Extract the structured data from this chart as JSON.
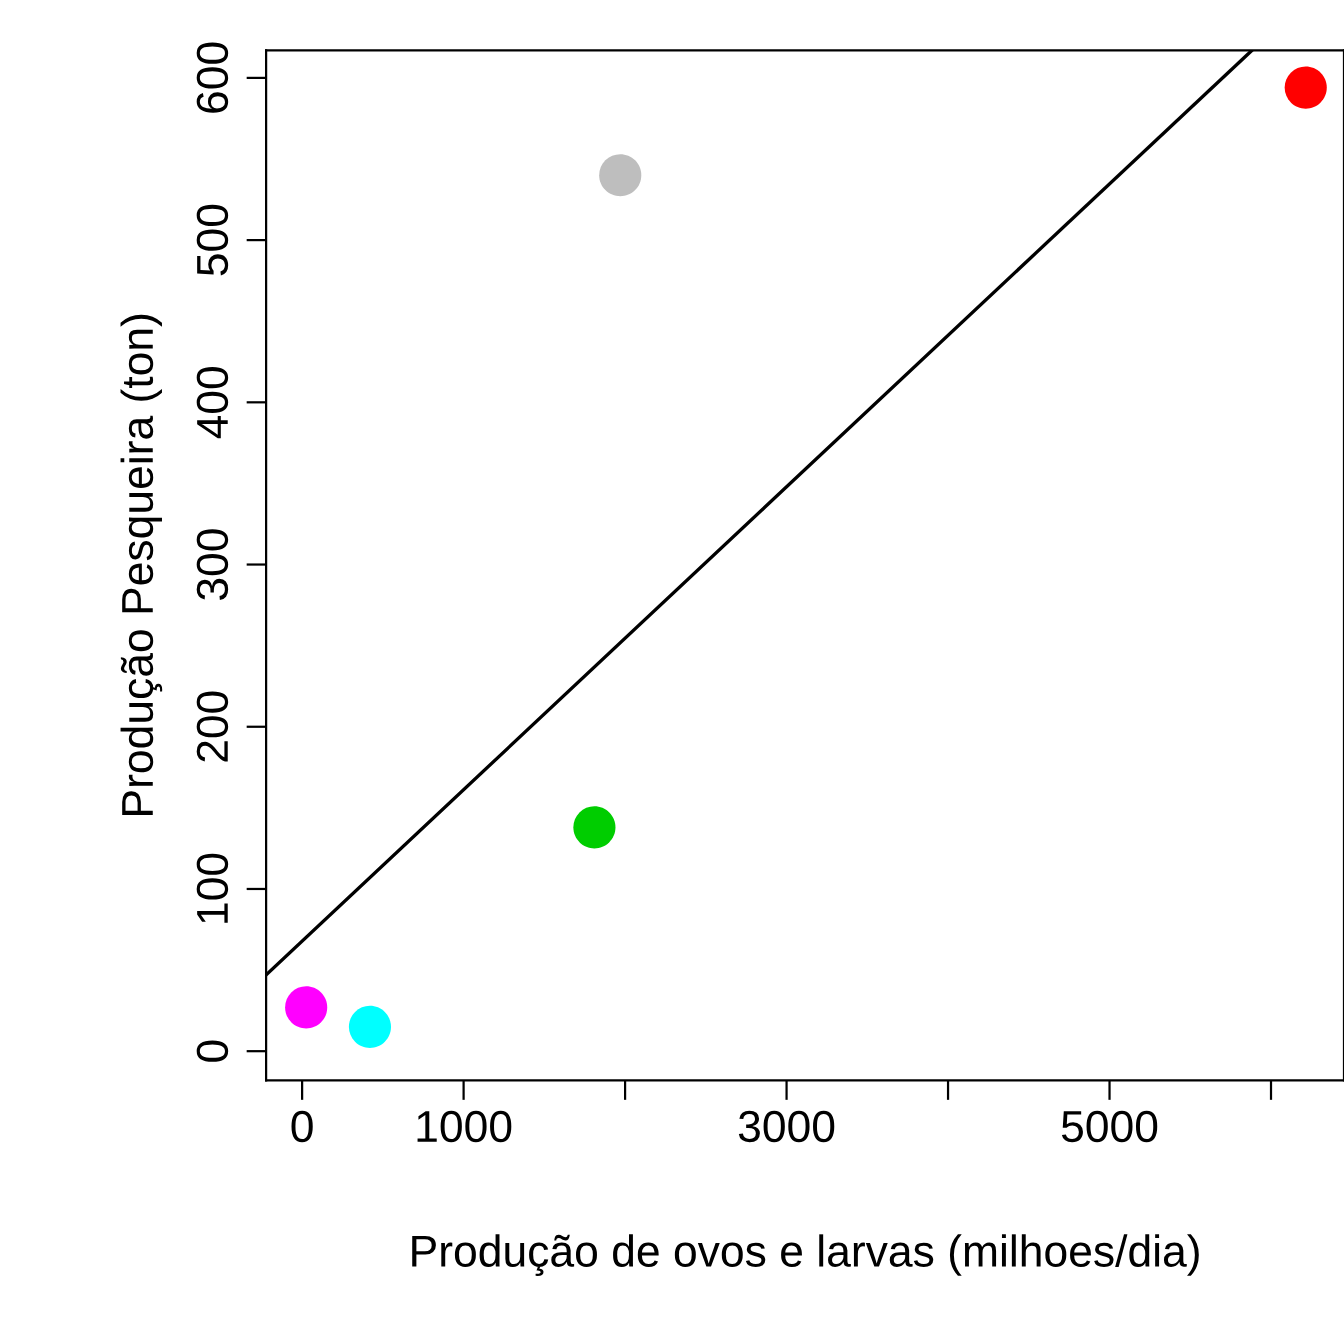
{
  "chart_data": {
    "type": "scatter",
    "xlabel": "Produção de ovos e larvas (milhoes/dia)",
    "ylabel": "Produção Pesqueira (ton)",
    "xlim": [
      -223,
      6452
    ],
    "ylim": [
      -18,
      617
    ],
    "xticks": [
      0,
      1000,
      {
        "value": 2000,
        "label": null
      },
      3000,
      {
        "value": 4000,
        "label": null
      },
      5000,
      {
        "value": 6000,
        "label": null
      }
    ],
    "yticks": [
      0,
      100,
      200,
      300,
      400,
      500,
      600
    ],
    "grid": false,
    "marker": "circle",
    "series": [
      {
        "x": [
          25,
          420,
          1810,
          1970,
          6215
        ],
        "values": [
          27,
          15,
          138,
          540,
          594
        ],
        "colors": [
          "#ff00ff",
          "#00ffff",
          "#00cd00",
          "#bebebe",
          "#ff0000"
        ]
      },
      {
        "type": "line",
        "x": [
          -223,
          5882
        ],
        "values": [
          47,
          617
        ],
        "color": "#000000",
        "line_style": "solid",
        "marker": "none"
      }
    ]
  }
}
